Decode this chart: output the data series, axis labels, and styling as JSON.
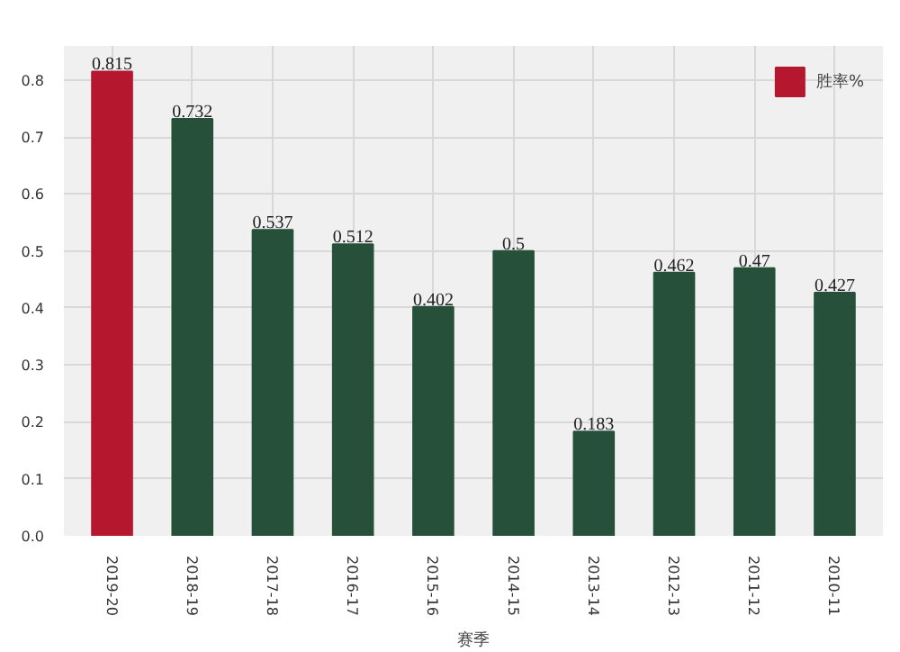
{
  "chart_data": {
    "type": "bar",
    "xlabel": "赛季",
    "categories": [
      "2019-20",
      "2018-19",
      "2017-18",
      "2016-17",
      "2015-16",
      "2014-15",
      "2013-14",
      "2012-13",
      "2011-12",
      "2010-11"
    ],
    "series": [
      {
        "name": "胜率%",
        "color": "#b5172f",
        "colors": [
          "#b5172f",
          "#27503a",
          "#27503a",
          "#27503a",
          "#27503a",
          "#27503a",
          "#27503a",
          "#27503a",
          "#27503a",
          "#27503a"
        ],
        "values": [
          0.815,
          0.732,
          0.537,
          0.512,
          0.402,
          0.5,
          0.183,
          0.462,
          0.47,
          0.427
        ]
      }
    ],
    "ylim": [
      0,
      0.86
    ],
    "yticks": [
      {
        "value": 0,
        "label": "0.0"
      },
      0.1,
      0.2,
      {
        "value": 0.3,
        "label": "0.3"
      },
      0.4,
      0.5,
      0.6,
      0.7,
      0.8
    ],
    "grid": true,
    "legend": "top right",
    "data_labels": true
  }
}
